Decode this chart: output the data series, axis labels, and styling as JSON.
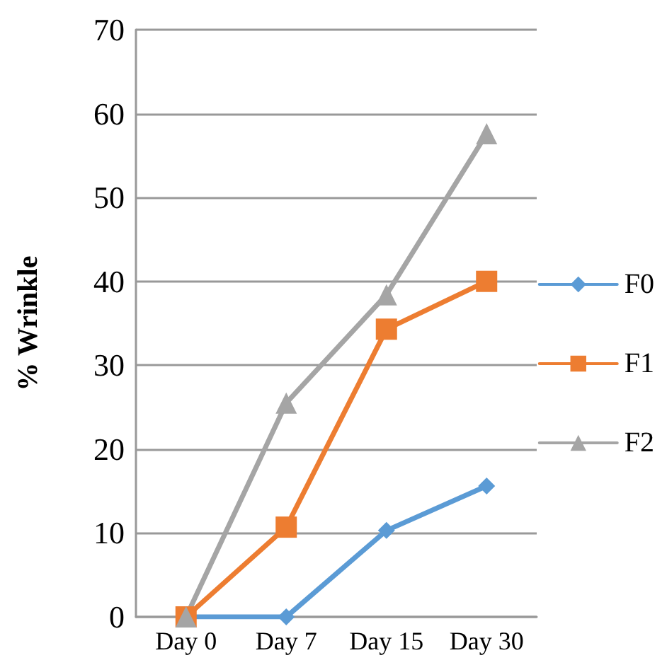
{
  "chart_data": {
    "type": "line",
    "ylabel": "% Wrinkle",
    "categories": [
      "Day 0",
      "Day 7",
      "Day 15",
      "Day 30"
    ],
    "series": [
      {
        "name": "F0",
        "color": "#5b9bd5",
        "marker": "diamond",
        "values": [
          0,
          0,
          10.3,
          15.6
        ]
      },
      {
        "name": "F1",
        "color": "#ed7d31",
        "marker": "square",
        "values": [
          0,
          10.7,
          34.3,
          40
        ]
      },
      {
        "name": "F2",
        "color": "#a5a5a5",
        "marker": "triangle",
        "values": [
          0,
          25.5,
          38.4,
          57.6
        ]
      }
    ],
    "ylim": [
      0,
      70
    ],
    "yticks": [
      0,
      10,
      20,
      30,
      40,
      50,
      60,
      70
    ],
    "grid": "y",
    "legend": "right"
  }
}
